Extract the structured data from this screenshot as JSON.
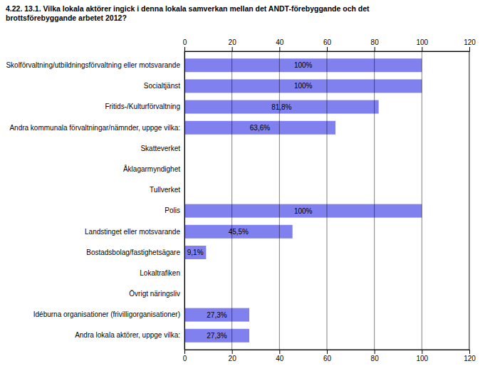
{
  "chart_data": {
    "type": "bar",
    "orientation": "horizontal",
    "title": "4.22. 13.1. Vilka lokala aktörer ingick i denna lokala samverkan mellan det ANDT-förebyggande och det\nbrottsförebyggande arbetet 2012?",
    "categories": [
      "Skolförvaltning/utbildningsförvaltning eller motsvarande",
      "Socialtjänst",
      "Fritids-/Kulturförvaltning",
      "Andra kommunala förvaltningar/nämnder, uppge vilka:",
      "Skatteverket",
      "Åklagarmyndighet",
      "Tullverket",
      "Polis",
      "Landstinget eller motsvarande",
      "Bostadsbolag/fastighetsägare",
      "Lokaltrafiken",
      "Övrigt näringsliv",
      "Idéburna organisationer (frivilligorganisationer)",
      "Andra lokala aktörer, uppge vilka:"
    ],
    "values": [
      100.0,
      100.0,
      81.8,
      63.6,
      0.0,
      0.0,
      0.0,
      100.0,
      45.5,
      9.1,
      0.0,
      0.0,
      27.3,
      27.3
    ],
    "value_labels": [
      "100%",
      "100%",
      "81,8%",
      "63,6%",
      null,
      null,
      null,
      "100%",
      "45,5%",
      "9,1%",
      null,
      null,
      "27,3%",
      "27,3%"
    ],
    "data_labels": true,
    "color": "#8080ee",
    "xlim": [
      0,
      120
    ],
    "xticks": [
      0,
      20,
      40,
      60,
      80,
      100,
      120
    ],
    "grid": true
  }
}
